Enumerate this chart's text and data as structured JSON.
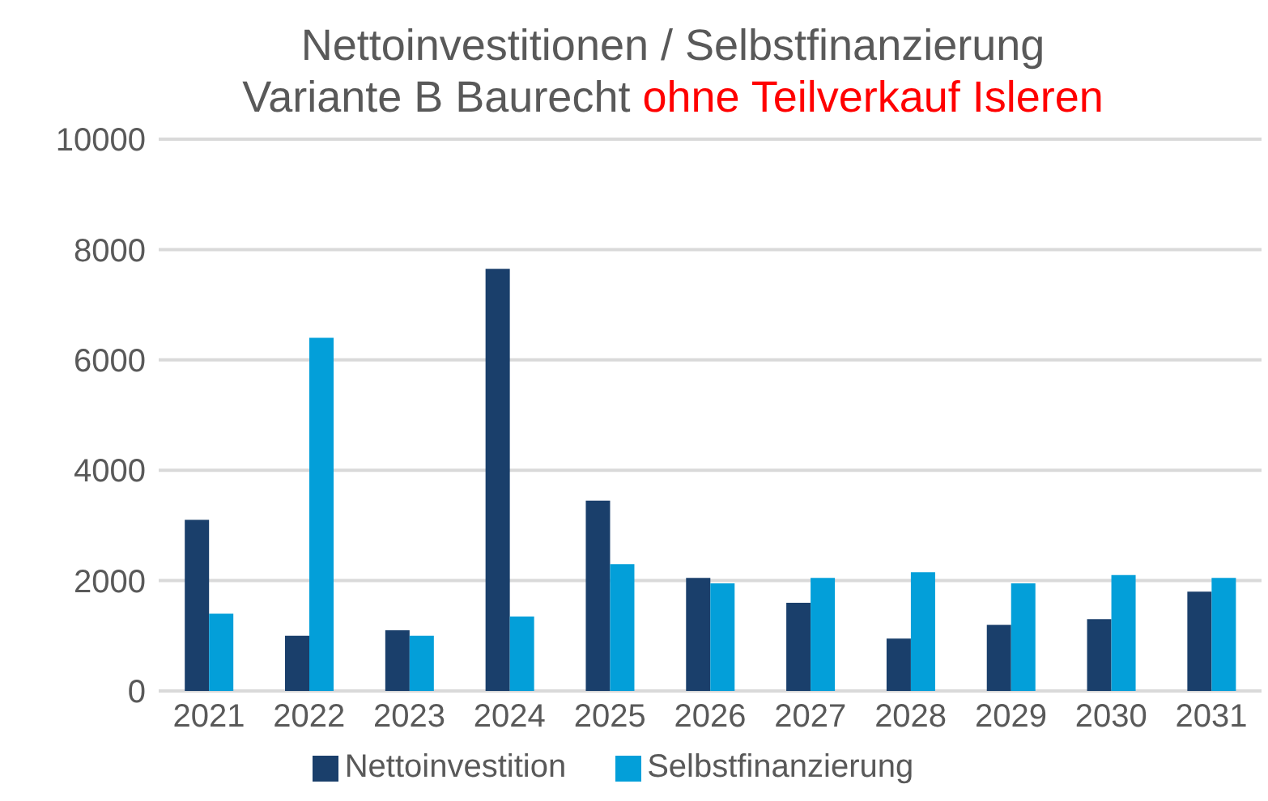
{
  "chart_data": {
    "type": "bar",
    "title": "Nettoinvestitionen / Selbstfinanzierung",
    "subtitle": "Variante B Baurecht",
    "annotations": [
      "ohne Teilverkauf Isleren"
    ],
    "categories": [
      "2021",
      "2022",
      "2023",
      "2024",
      "2025",
      "2026",
      "2027",
      "2028",
      "2029",
      "2030",
      "2031"
    ],
    "series": [
      {
        "name": "Nettoinvestition",
        "color": "#1a3f6b",
        "values": [
          3100,
          1000,
          1100,
          7650,
          3450,
          2050,
          1600,
          950,
          1200,
          1300,
          1800
        ]
      },
      {
        "name": "Selbstfinanzierung",
        "color": "#039fd9",
        "values": [
          1400,
          6400,
          1000,
          1350,
          2300,
          1950,
          2050,
          2150,
          1950,
          2100,
          2050
        ]
      }
    ],
    "ylim": [
      0,
      10000
    ],
    "yticks": [
      0,
      2000,
      4000,
      6000,
      8000,
      10000
    ],
    "grid": "y",
    "legend": "bottom"
  }
}
